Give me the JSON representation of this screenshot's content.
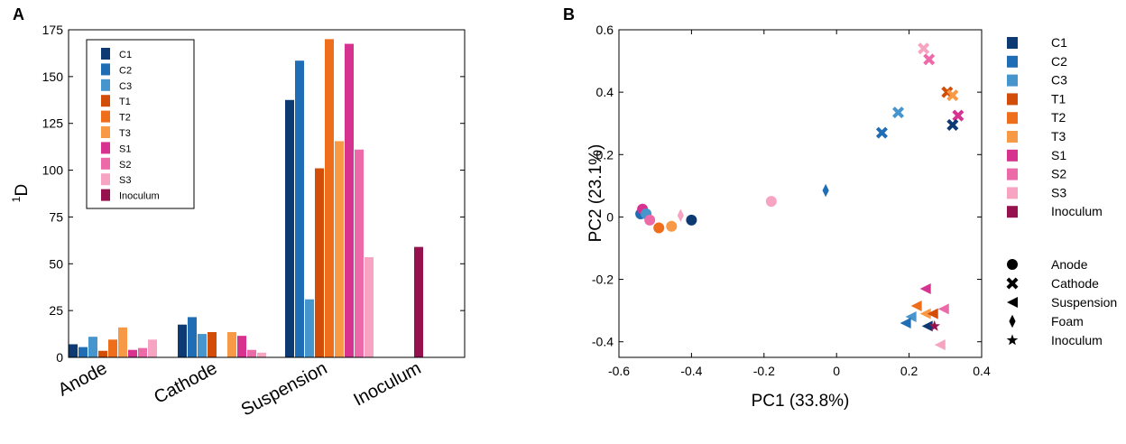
{
  "chart_data": [
    {
      "type": "bar",
      "panel_label": "A",
      "ylabel_sup": "1",
      "ylabel_main": "D",
      "ylim": [
        0,
        175
      ],
      "yticks": [
        "0",
        "25",
        "50",
        "75",
        "100",
        "125",
        "150",
        "175"
      ],
      "categories": [
        "Anode",
        "Cathode",
        "Suspension",
        "Inoculum"
      ],
      "series": [
        {
          "name": "C1",
          "color": "#0d3a73",
          "values": [
            7,
            17.5,
            137.5,
            null
          ]
        },
        {
          "name": "C2",
          "color": "#1f6db5",
          "values": [
            5.5,
            21.5,
            158.5,
            null
          ]
        },
        {
          "name": "C3",
          "color": "#4795cd",
          "values": [
            11,
            12.5,
            31,
            null
          ]
        },
        {
          "name": "T1",
          "color": "#d24d07",
          "values": [
            3.5,
            13.5,
            101,
            null
          ]
        },
        {
          "name": "T2",
          "color": "#ef6e1b",
          "values": [
            9.5,
            null,
            170,
            null
          ]
        },
        {
          "name": "T3",
          "color": "#f89a45",
          "values": [
            16,
            13.5,
            115.5,
            null
          ]
        },
        {
          "name": "S1",
          "color": "#d7328f",
          "values": [
            4,
            11.5,
            167.5,
            null
          ]
        },
        {
          "name": "S2",
          "color": "#ec6aa8",
          "values": [
            5,
            4,
            111,
            null
          ]
        },
        {
          "name": "S3",
          "color": "#f7a3c2",
          "values": [
            9.5,
            2.5,
            53.5,
            null
          ]
        },
        {
          "name": "Inoculum",
          "color": "#96124e",
          "values": [
            null,
            null,
            null,
            59
          ]
        }
      ]
    },
    {
      "type": "scatter",
      "panel_label": "B",
      "xlabel": "PC1 (33.8%)",
      "ylabel": "PC2 (23.1%)",
      "xlim": [
        -0.6,
        0.4
      ],
      "ylim": [
        -0.45,
        0.6
      ],
      "xticks": [
        "-0.6",
        "-0.4",
        "-0.2",
        "0",
        "0.2",
        "0.4"
      ],
      "yticks": [
        "-0.4",
        "-0.2",
        "0",
        "0.2",
        "0.4",
        "0.6"
      ],
      "color_legend": [
        {
          "name": "C1",
          "color": "#0d3a73"
        },
        {
          "name": "C2",
          "color": "#1f6db5"
        },
        {
          "name": "C3",
          "color": "#4795cd"
        },
        {
          "name": "T1",
          "color": "#d24d07"
        },
        {
          "name": "T2",
          "color": "#ef6e1b"
        },
        {
          "name": "T3",
          "color": "#f89a45"
        },
        {
          "name": "S1",
          "color": "#d7328f"
        },
        {
          "name": "S2",
          "color": "#ec6aa8"
        },
        {
          "name": "S3",
          "color": "#f7a3c2"
        },
        {
          "name": "Inoculum",
          "color": "#96124e"
        }
      ],
      "shape_legend": [
        {
          "name": "Anode",
          "shape": "circle"
        },
        {
          "name": "Cathode",
          "shape": "cross"
        },
        {
          "name": "Suspension",
          "shape": "triangle"
        },
        {
          "name": "Foam",
          "shape": "diamond"
        },
        {
          "name": "Inoculum",
          "shape": "star"
        }
      ],
      "points": [
        {
          "group": "C2",
          "shape": "circle",
          "x": -0.54,
          "y": 0.01
        },
        {
          "group": "S1",
          "shape": "circle",
          "x": -0.535,
          "y": 0.025
        },
        {
          "group": "C3",
          "shape": "circle",
          "x": -0.525,
          "y": 0.01
        },
        {
          "group": "S2",
          "shape": "circle",
          "x": -0.515,
          "y": -0.01
        },
        {
          "group": "T2",
          "shape": "circle",
          "x": -0.49,
          "y": -0.035
        },
        {
          "group": "T3",
          "shape": "circle",
          "x": -0.455,
          "y": -0.03
        },
        {
          "group": "C1",
          "shape": "circle",
          "x": -0.4,
          "y": -0.01
        },
        {
          "group": "S3",
          "shape": "circle",
          "x": -0.18,
          "y": 0.05
        },
        {
          "group": "S3",
          "shape": "diamond",
          "x": -0.43,
          "y": 0.005
        },
        {
          "group": "C2",
          "shape": "diamond",
          "x": -0.03,
          "y": 0.085
        },
        {
          "group": "C2",
          "shape": "cross",
          "x": 0.125,
          "y": 0.27
        },
        {
          "group": "C3",
          "shape": "cross",
          "x": 0.17,
          "y": 0.335
        },
        {
          "group": "S3",
          "shape": "cross",
          "x": 0.24,
          "y": 0.54
        },
        {
          "group": "S2",
          "shape": "cross",
          "x": 0.255,
          "y": 0.505
        },
        {
          "group": "T1",
          "shape": "cross",
          "x": 0.305,
          "y": 0.4
        },
        {
          "group": "T3",
          "shape": "cross",
          "x": 0.32,
          "y": 0.39
        },
        {
          "group": "S1",
          "shape": "cross",
          "x": 0.335,
          "y": 0.325
        },
        {
          "group": "C1",
          "shape": "cross",
          "x": 0.32,
          "y": 0.295
        },
        {
          "group": "S1",
          "shape": "triangle",
          "x": 0.245,
          "y": -0.23
        },
        {
          "group": "T2",
          "shape": "triangle",
          "x": 0.22,
          "y": -0.285
        },
        {
          "group": "C3",
          "shape": "triangle",
          "x": 0.205,
          "y": -0.32
        },
        {
          "group": "C2",
          "shape": "triangle",
          "x": 0.19,
          "y": -0.34
        },
        {
          "group": "T3",
          "shape": "triangle",
          "x": 0.245,
          "y": -0.31
        },
        {
          "group": "T1",
          "shape": "triangle",
          "x": 0.265,
          "y": -0.31
        },
        {
          "group": "S2",
          "shape": "triangle",
          "x": 0.295,
          "y": -0.295
        },
        {
          "group": "C1",
          "shape": "triangle",
          "x": 0.25,
          "y": -0.35
        },
        {
          "group": "S3",
          "shape": "triangle",
          "x": 0.285,
          "y": -0.41
        },
        {
          "group": "Inoculum",
          "shape": "star",
          "x": 0.27,
          "y": -0.35
        }
      ]
    }
  ]
}
